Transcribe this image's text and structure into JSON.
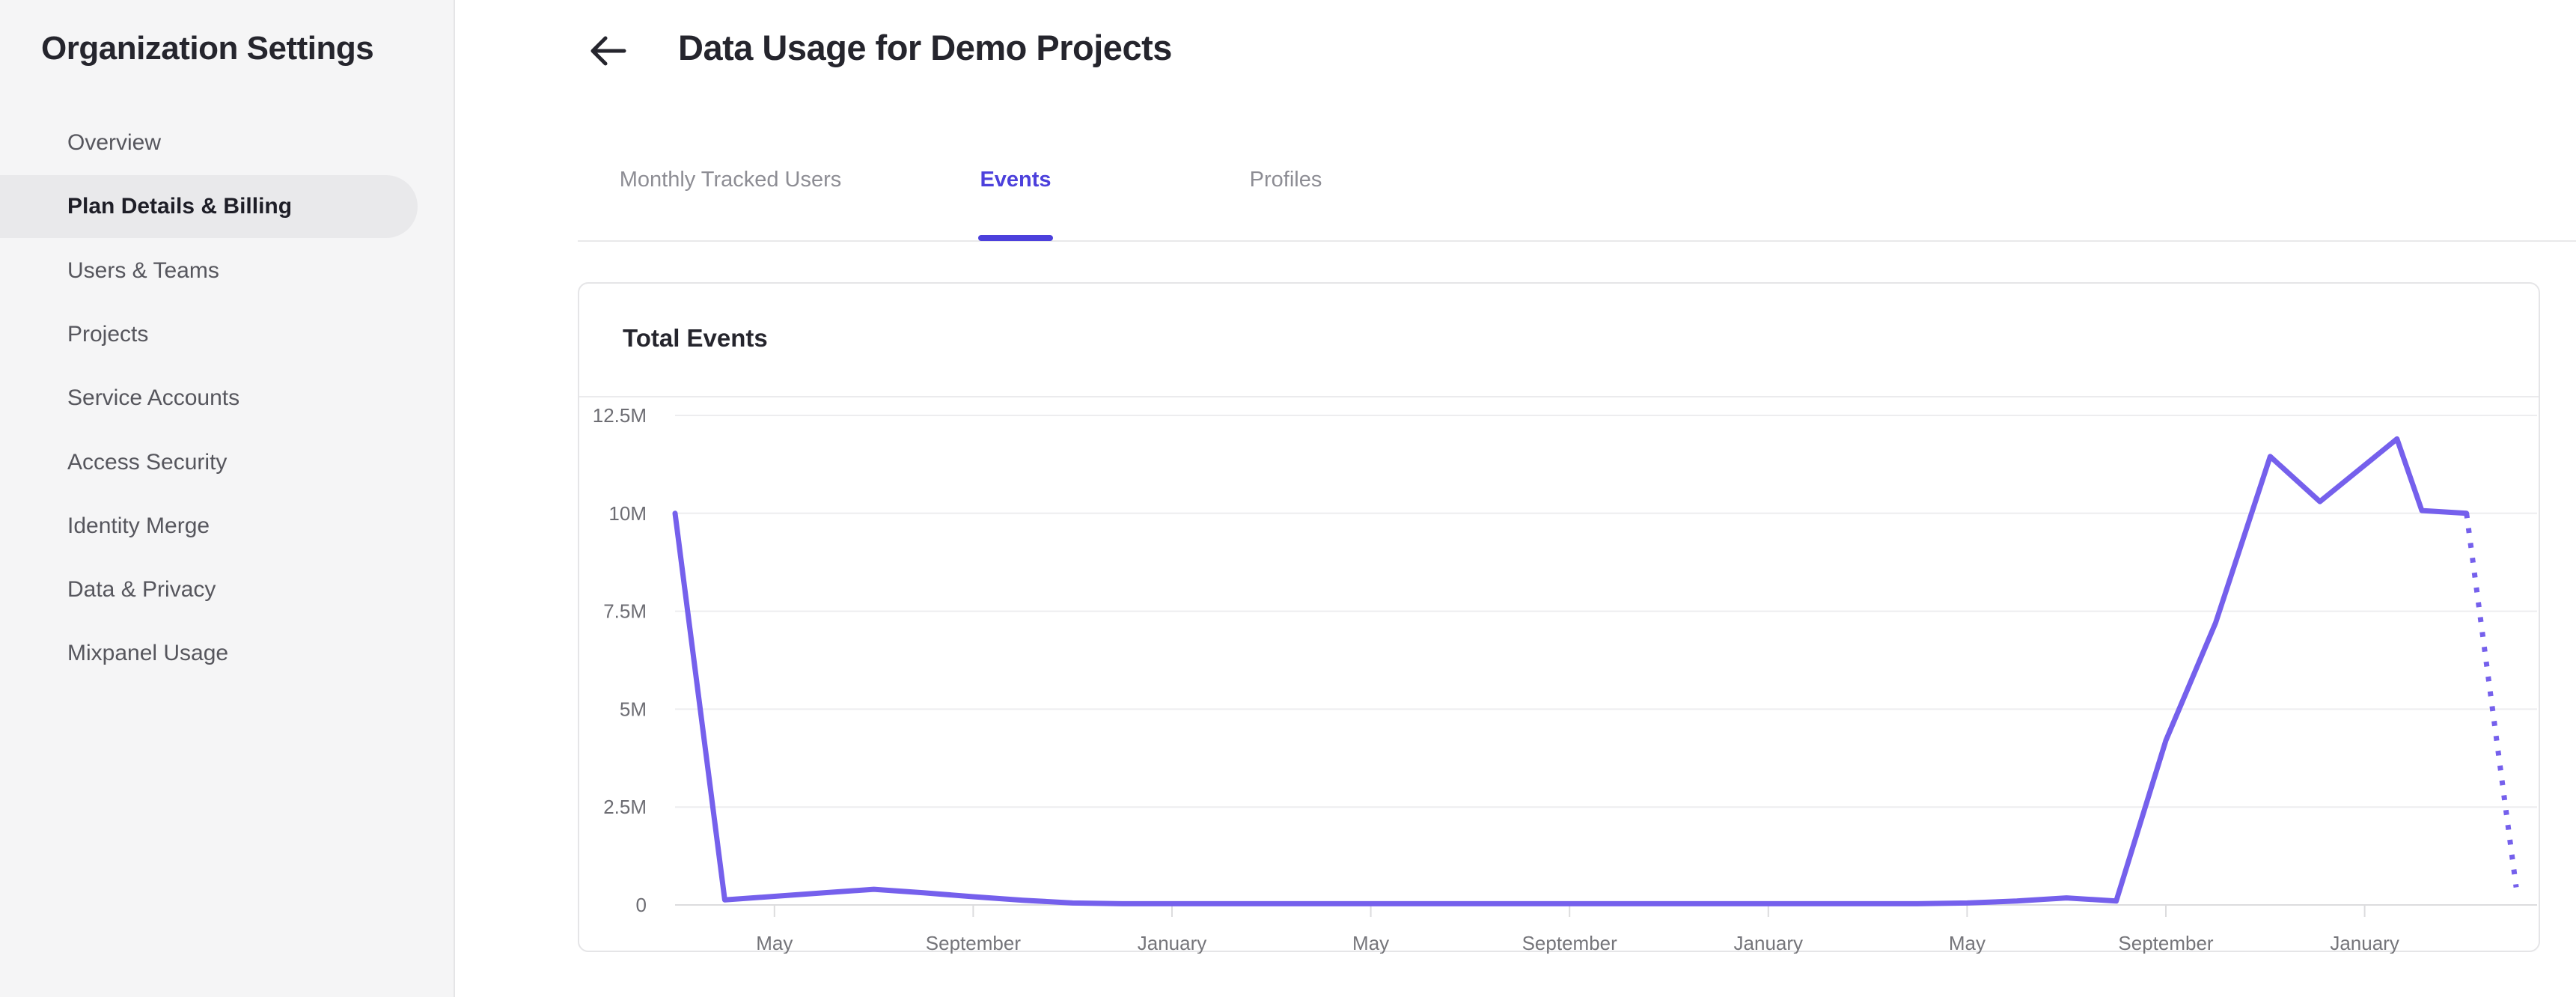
{
  "sidebar": {
    "title": "Organization Settings",
    "items": [
      {
        "label": "Overview",
        "active": false
      },
      {
        "label": "Plan Details & Billing",
        "active": true
      },
      {
        "label": "Users & Teams",
        "active": false
      },
      {
        "label": "Projects",
        "active": false
      },
      {
        "label": "Service Accounts",
        "active": false
      },
      {
        "label": "Access Security",
        "active": false
      },
      {
        "label": "Identity Merge",
        "active": false
      },
      {
        "label": "Data & Privacy",
        "active": false
      },
      {
        "label": "Mixpanel Usage",
        "active": false
      }
    ]
  },
  "header": {
    "title": "Data Usage for Demo Projects",
    "back_icon": "arrow-left-icon"
  },
  "tabs": [
    {
      "label": "Monthly Tracked Users",
      "active": false
    },
    {
      "label": "Events",
      "active": true
    },
    {
      "label": "Profiles",
      "active": false
    }
  ],
  "card": {
    "title": "Total Events"
  },
  "colors": {
    "accent": "#4C40DC",
    "line": "#7560EC",
    "gridline": "#ededef",
    "axis": "#dcdcde",
    "sidebar_active_bg": "#e9e9eb"
  },
  "chart_data": {
    "type": "line",
    "title": "Total Events",
    "unit": "events",
    "grid": "horizontal",
    "legend": "none",
    "ylim_millions": [
      0,
      12.5
    ],
    "y_ticks": [
      "12.5M",
      "10M",
      "7.5M",
      "5M",
      "2.5M",
      "0"
    ],
    "x_tick_labels": [
      "May",
      "September",
      "January",
      "May",
      "September",
      "January",
      "May",
      "September",
      "January"
    ],
    "x_tick_month_indices": [
      2,
      6,
      10,
      14,
      18,
      22,
      26,
      30,
      34
    ],
    "x_axis_note": "monthly points, index 0 = first plotted month (March of year 1)",
    "series": [
      {
        "name": "Total Events (actual)",
        "style": "solid",
        "points": [
          {
            "m": 0,
            "v": 10.0
          },
          {
            "m": 1,
            "v": 0.13
          },
          {
            "m": 2,
            "v": 0.22
          },
          {
            "m": 3,
            "v": 0.31
          },
          {
            "m": 4,
            "v": 0.4
          },
          {
            "m": 5,
            "v": 0.31
          },
          {
            "m": 6,
            "v": 0.21
          },
          {
            "m": 7,
            "v": 0.12
          },
          {
            "m": 8,
            "v": 0.05
          },
          {
            "m": 9,
            "v": 0.03
          },
          {
            "m": 10,
            "v": 0.03
          },
          {
            "m": 11,
            "v": 0.03
          },
          {
            "m": 12,
            "v": 0.03
          },
          {
            "m": 13,
            "v": 0.03
          },
          {
            "m": 14,
            "v": 0.03
          },
          {
            "m": 15,
            "v": 0.03
          },
          {
            "m": 16,
            "v": 0.03
          },
          {
            "m": 17,
            "v": 0.03
          },
          {
            "m": 18,
            "v": 0.03
          },
          {
            "m": 19,
            "v": 0.03
          },
          {
            "m": 20,
            "v": 0.03
          },
          {
            "m": 21,
            "v": 0.03
          },
          {
            "m": 22,
            "v": 0.03
          },
          {
            "m": 23,
            "v": 0.03
          },
          {
            "m": 24,
            "v": 0.03
          },
          {
            "m": 25,
            "v": 0.03
          },
          {
            "m": 26,
            "v": 0.05
          },
          {
            "m": 27,
            "v": 0.1
          },
          {
            "m": 28,
            "v": 0.18
          },
          {
            "m": 29,
            "v": 0.1
          },
          {
            "m": 30,
            "v": 4.2
          },
          {
            "m": 31,
            "v": 7.2
          },
          {
            "m": 32.1,
            "v": 11.45
          },
          {
            "m": 33.1,
            "v": 10.3
          },
          {
            "m": 34.65,
            "v": 11.9
          },
          {
            "m": 35.15,
            "v": 10.07
          },
          {
            "m": 36.05,
            "v": 10.0
          }
        ]
      },
      {
        "name": "Total Events (projected)",
        "style": "dotted",
        "points": [
          {
            "m": 36.05,
            "v": 10.0
          },
          {
            "m": 37.05,
            "v": 0.45
          }
        ]
      }
    ]
  }
}
